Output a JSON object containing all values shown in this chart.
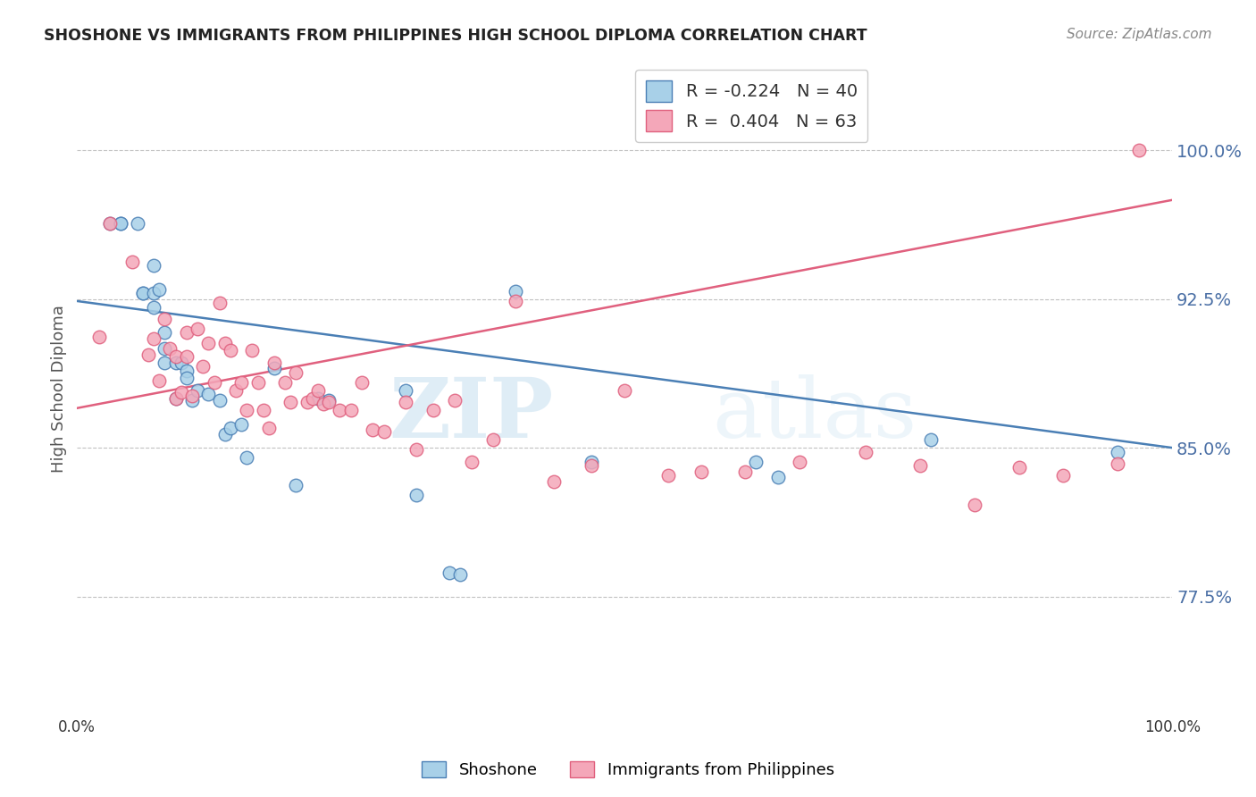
{
  "title": "SHOSHONE VS IMMIGRANTS FROM PHILIPPINES HIGH SCHOOL DIPLOMA CORRELATION CHART",
  "source": "Source: ZipAtlas.com",
  "ylabel": "High School Diploma",
  "ytick_labels": [
    "77.5%",
    "85.0%",
    "92.5%",
    "100.0%"
  ],
  "ytick_values": [
    0.775,
    0.85,
    0.925,
    1.0
  ],
  "xlim": [
    0.0,
    1.0
  ],
  "ylim": [
    0.715,
    1.045
  ],
  "legend_blue_r": "-0.224",
  "legend_blue_n": "40",
  "legend_pink_r": "0.404",
  "legend_pink_n": "63",
  "legend_label_blue": "Shoshone",
  "legend_label_pink": "Immigrants from Philippines",
  "color_blue": "#a8d0e8",
  "color_pink": "#f4a7b9",
  "color_blue_line": "#4a7fb5",
  "color_pink_line": "#e0607e",
  "watermark_text": "ZIP",
  "watermark_text2": "atlas",
  "blue_line_start_y": 0.924,
  "blue_line_end_y": 0.85,
  "pink_line_start_y": 0.87,
  "pink_line_end_y": 0.975,
  "shoshone_x": [
    0.03,
    0.04,
    0.04,
    0.055,
    0.06,
    0.06,
    0.07,
    0.07,
    0.07,
    0.075,
    0.08,
    0.08,
    0.08,
    0.09,
    0.09,
    0.095,
    0.1,
    0.1,
    0.105,
    0.11,
    0.12,
    0.13,
    0.135,
    0.14,
    0.15,
    0.155,
    0.18,
    0.2,
    0.22,
    0.23,
    0.3,
    0.31,
    0.34,
    0.35,
    0.4,
    0.47,
    0.62,
    0.64,
    0.78,
    0.95
  ],
  "shoshone_y": [
    0.963,
    0.963,
    0.963,
    0.963,
    0.928,
    0.928,
    0.942,
    0.928,
    0.921,
    0.93,
    0.908,
    0.9,
    0.893,
    0.893,
    0.875,
    0.893,
    0.889,
    0.885,
    0.874,
    0.879,
    0.877,
    0.874,
    0.857,
    0.86,
    0.862,
    0.845,
    0.89,
    0.831,
    0.875,
    0.874,
    0.879,
    0.826,
    0.787,
    0.786,
    0.929,
    0.843,
    0.843,
    0.835,
    0.854,
    0.848
  ],
  "philippines_x": [
    0.02,
    0.03,
    0.05,
    0.065,
    0.07,
    0.075,
    0.08,
    0.085,
    0.09,
    0.09,
    0.095,
    0.1,
    0.1,
    0.105,
    0.11,
    0.115,
    0.12,
    0.125,
    0.13,
    0.135,
    0.14,
    0.145,
    0.15,
    0.155,
    0.16,
    0.165,
    0.17,
    0.175,
    0.18,
    0.19,
    0.195,
    0.2,
    0.21,
    0.215,
    0.22,
    0.225,
    0.23,
    0.24,
    0.25,
    0.26,
    0.27,
    0.28,
    0.3,
    0.31,
    0.325,
    0.345,
    0.36,
    0.38,
    0.4,
    0.435,
    0.47,
    0.5,
    0.54,
    0.57,
    0.61,
    0.66,
    0.72,
    0.77,
    0.82,
    0.86,
    0.9,
    0.95,
    0.97
  ],
  "philippines_y": [
    0.906,
    0.963,
    0.944,
    0.897,
    0.905,
    0.884,
    0.915,
    0.9,
    0.896,
    0.875,
    0.878,
    0.908,
    0.896,
    0.876,
    0.91,
    0.891,
    0.903,
    0.883,
    0.923,
    0.903,
    0.899,
    0.879,
    0.883,
    0.869,
    0.899,
    0.883,
    0.869,
    0.86,
    0.893,
    0.883,
    0.873,
    0.888,
    0.873,
    0.875,
    0.879,
    0.872,
    0.873,
    0.869,
    0.869,
    0.883,
    0.859,
    0.858,
    0.873,
    0.849,
    0.869,
    0.874,
    0.843,
    0.854,
    0.924,
    0.833,
    0.841,
    0.879,
    0.836,
    0.838,
    0.838,
    0.843,
    0.848,
    0.841,
    0.821,
    0.84,
    0.836,
    0.842,
    1.0
  ]
}
